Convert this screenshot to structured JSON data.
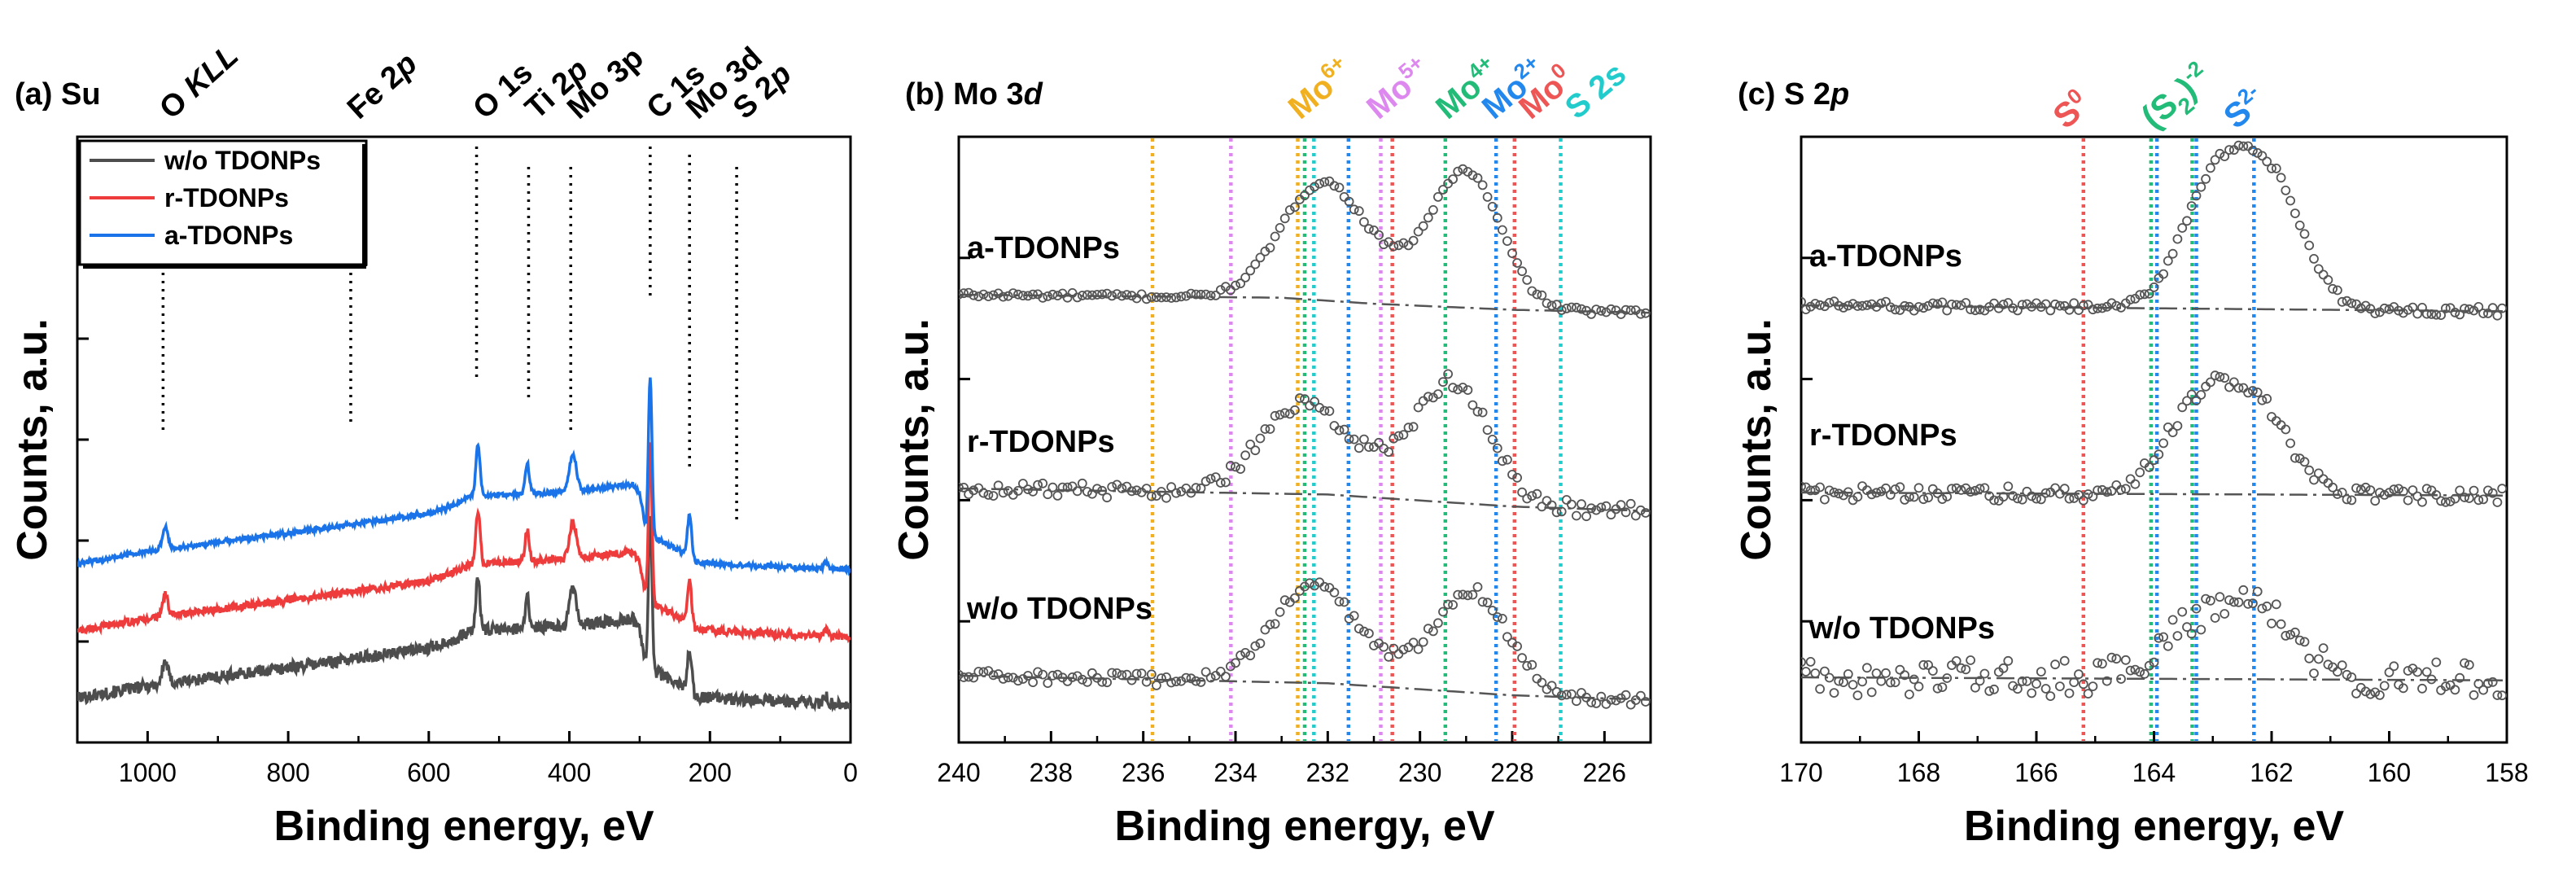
{
  "figure": {
    "colors": {
      "black": "#000000",
      "gray_series": "#4d4d4d",
      "red_series": "#ee3b3b",
      "blue_series": "#1a73e8",
      "markers": "#555555",
      "baseline": "#555555"
    }
  },
  "chart_data": [
    {
      "id": "panel_a",
      "type": "line",
      "panel_label": "(a) Su",
      "xlabel": "Binding energy, eV",
      "ylabel": "Counts, a.u.",
      "xlim": [
        1100,
        0
      ],
      "x_reversed": true,
      "xticks": [
        1000,
        800,
        600,
        400,
        200,
        0
      ],
      "xtick_labels": [
        "1000",
        "800",
        "600",
        "400",
        "200",
        "0"
      ],
      "ytick_count": 5,
      "legend": {
        "placement": "top-left",
        "entries": [
          {
            "label": "w/o TDONPs",
            "color": "#4d4d4d"
          },
          {
            "label": "r-TDONPs",
            "color": "#ee3b3b"
          },
          {
            "label": "a-TDONPs",
            "color": "#1a73e8"
          }
        ]
      },
      "series": [
        {
          "name": "w/o TDONPs",
          "color": "#4d4d4d",
          "offset": 0,
          "noise": 0.05
        },
        {
          "name": "r-TDONPs",
          "color": "#ee3b3b",
          "offset": 0.55,
          "noise": 0.03
        },
        {
          "name": "a-TDONPs",
          "color": "#1a73e8",
          "offset": 1.1,
          "noise": 0.02
        }
      ],
      "survey_model": {
        "base": [
          [
            1100,
            0.05
          ],
          [
            1000,
            0.15
          ],
          [
            800,
            0.3
          ],
          [
            600,
            0.46
          ],
          [
            560,
            0.54
          ],
          [
            540,
            0.6
          ],
          [
            400,
            0.64
          ],
          [
            310,
            0.7
          ],
          [
            300,
            0.62
          ],
          [
            290,
            0.3
          ],
          [
            240,
            0.15
          ],
          [
            220,
            0.06
          ],
          [
            160,
            0.04
          ],
          [
            0,
            0.0
          ]
        ],
        "peaks": [
          [
            975,
            0.18,
            4
          ],
          [
            530,
            0.42,
            3
          ],
          [
            460,
            0.25,
            3
          ],
          [
            395,
            0.3,
            5
          ],
          [
            285,
            1.3,
            2.5
          ],
          [
            229,
            0.35,
            3
          ],
          [
            35,
            0.05,
            3
          ]
        ]
      },
      "annotations": [
        {
          "label_prefix": "O ",
          "label_italic": "KLL",
          "x": 978
        },
        {
          "label_prefix": "Fe 2",
          "label_italic": "p",
          "x": 711
        },
        {
          "label_prefix": "O 1s",
          "label_italic": "",
          "x": 532
        },
        {
          "label_prefix": "Ti 2",
          "label_italic": "p",
          "x": 458
        },
        {
          "label_prefix": "Mo 3p",
          "label_italic": "",
          "x": 398
        },
        {
          "label_prefix": "C 1s",
          "label_italic": "",
          "x": 285
        },
        {
          "label_prefix": "Mo 3d",
          "label_italic": "",
          "x": 229
        },
        {
          "label_prefix": "S 2",
          "label_italic": "p",
          "x": 162
        }
      ]
    },
    {
      "id": "panel_b",
      "type": "scatter",
      "panel_label_prefix": "(b) Mo 3",
      "panel_label_italic": "d",
      "xlabel": "Binding energy, eV",
      "ylabel": "Counts, a.u.",
      "xlim": [
        240,
        225
      ],
      "x_reversed": true,
      "xticks": [
        240,
        238,
        236,
        234,
        232,
        230,
        228,
        226
      ],
      "xtick_labels": [
        "240",
        "238",
        "236",
        "234",
        "232",
        "230",
        "228",
        "226"
      ],
      "ytick_count": 4,
      "series": [
        {
          "name": "a-TDONPs",
          "offset": 2,
          "noise": 0.02,
          "baseline": [
            [
              240,
              0.0
            ],
            [
              233,
              -0.02
            ],
            [
              231,
              -0.06
            ],
            [
              228,
              -0.1
            ],
            [
              225,
              -0.12
            ]
          ],
          "peaks": [
            [
              232.1,
              0.78,
              0.9
            ],
            [
              229.0,
              0.9,
              0.75
            ],
            [
              230.5,
              0.1,
              0.7
            ]
          ]
        },
        {
          "name": "r-TDONPs",
          "offset": 1,
          "noise": 0.05,
          "baseline": [
            [
              240,
              0.0
            ],
            [
              232,
              -0.04
            ],
            [
              228,
              -0.12
            ],
            [
              225,
              -0.15
            ]
          ],
          "peaks": [
            [
              232.5,
              0.6,
              0.95
            ],
            [
              229.3,
              0.8,
              0.8
            ],
            [
              230.8,
              0.08,
              0.6
            ]
          ]
        },
        {
          "name": "w/o TDONPs",
          "offset": 0,
          "noise": 0.04,
          "baseline": [
            [
              240,
              0.0
            ],
            [
              232,
              -0.05
            ],
            [
              228,
              -0.13
            ],
            [
              225,
              -0.16
            ]
          ],
          "peaks": [
            [
              232.3,
              0.65,
              0.9
            ],
            [
              228.9,
              0.68,
              0.8
            ],
            [
              230.7,
              0.05,
              0.6
            ]
          ]
        }
      ],
      "reference_lines": [
        {
          "x": 235.8,
          "color": "#f0b020"
        },
        {
          "x": 232.65,
          "color": "#f0b020"
        },
        {
          "x": 234.1,
          "color": "#dd88ee"
        },
        {
          "x": 230.85,
          "color": "#dd88ee"
        },
        {
          "x": 232.5,
          "color": "#22bb77"
        },
        {
          "x": 229.45,
          "color": "#22bb77"
        },
        {
          "x": 231.55,
          "color": "#2288ee"
        },
        {
          "x": 228.35,
          "color": "#2288ee"
        },
        {
          "x": 230.6,
          "color": "#ee5555"
        },
        {
          "x": 227.95,
          "color": "#ee5555"
        },
        {
          "x": 232.3,
          "color": "#22cccc"
        },
        {
          "x": 226.95,
          "color": "#22cccc"
        }
      ],
      "species_labels": [
        {
          "base": "Mo",
          "sup": "6+",
          "x": 232.6,
          "color": "#f0b020"
        },
        {
          "base": "Mo",
          "sup": "5+",
          "x": 230.9,
          "color": "#dd88ee"
        },
        {
          "base": "Mo",
          "sup": "4+",
          "x": 229.4,
          "color": "#22bb77"
        },
        {
          "base": "Mo",
          "sup": "2+",
          "x": 228.4,
          "color": "#2288ee"
        },
        {
          "base": "Mo",
          "sup": "0",
          "x": 227.6,
          "color": "#ee5555"
        },
        {
          "base": "S 2s",
          "sup": "",
          "x": 226.6,
          "color": "#22cccc"
        }
      ]
    },
    {
      "id": "panel_c",
      "type": "scatter",
      "panel_label_prefix": "(c) S 2",
      "panel_label_italic": "p",
      "xlabel": "Binding energy, eV",
      "ylabel": "Counts, a.u.",
      "xlim": [
        170,
        158
      ],
      "x_reversed": true,
      "xticks": [
        170,
        168,
        166,
        164,
        162,
        160,
        158
      ],
      "xtick_labels": [
        "170",
        "168",
        "166",
        "164",
        "162",
        "160",
        "158"
      ],
      "ytick_count": 4,
      "series": [
        {
          "name": "a-TDONPs",
          "offset": 2,
          "noise": 0.03,
          "baseline": [
            [
              170,
              0.0
            ],
            [
              158,
              -0.04
            ]
          ],
          "peaks": [
            [
              163.0,
              0.8,
              0.55
            ],
            [
              162.0,
              0.8,
              0.55
            ]
          ]
        },
        {
          "name": "r-TDONPs",
          "offset": 1,
          "noise": 0.05,
          "baseline": [
            [
              170,
              0.0
            ],
            [
              158,
              -0.02
            ]
          ],
          "peaks": [
            [
              163.2,
              0.6,
              0.6
            ],
            [
              162.2,
              0.5,
              0.55
            ]
          ]
        },
        {
          "name": "w/o TDONPs",
          "offset": 0,
          "noise": 0.12,
          "baseline": [
            [
              170,
              0.0
            ],
            [
              158,
              -0.02
            ]
          ],
          "peaks": [
            [
              163.0,
              0.4,
              0.75
            ],
            [
              162.1,
              0.3,
              0.6
            ]
          ]
        }
      ],
      "reference_lines": [
        {
          "x": 165.2,
          "color": "#ee5555"
        },
        {
          "x": 164.05,
          "color": "#22bb77"
        },
        {
          "x": 163.35,
          "color": "#22bb77"
        },
        {
          "x": 163.95,
          "color": "#2288ee"
        },
        {
          "x": 163.28,
          "color": "#2288ee"
        },
        {
          "x": 162.3,
          "color": "#2288ee"
        }
      ],
      "species_labels": [
        {
          "label": "S0",
          "base": "S",
          "sup": "0",
          "x": 165.2,
          "color": "#ee5555"
        },
        {
          "label": "(S2)-2",
          "base": "(S",
          "sub": "2",
          "close": ")",
          "sup": "-2",
          "x": 163.7,
          "color": "#22bb77"
        },
        {
          "label": "S2-",
          "base": "S",
          "sup": "2-",
          "x": 162.3,
          "color": "#2288ee"
        }
      ]
    }
  ]
}
